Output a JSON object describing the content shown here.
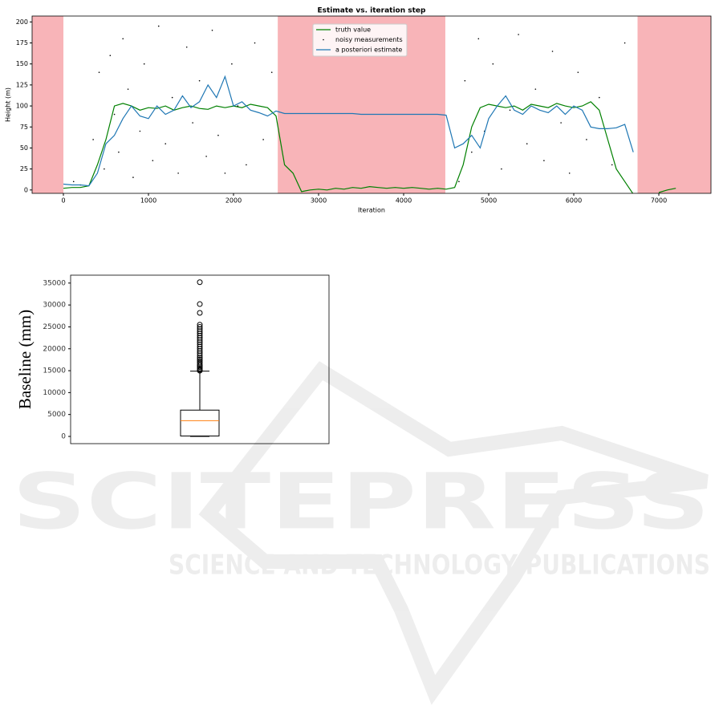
{
  "watermark": {
    "title": "SCITEPRESS",
    "subtitle": "SCIENCE AND TECHNOLOGY PUBLICATIONS"
  },
  "chart_data": [
    {
      "type": "line",
      "title": "Estimate vs. iteration step",
      "x_label": "Iteration",
      "y_label": "Height (m)",
      "x": [
        0,
        100,
        200,
        300,
        400,
        500,
        600,
        700,
        800,
        900,
        1000,
        1100,
        1200,
        1300,
        1400,
        1500,
        1600,
        1700,
        1800,
        1900,
        2000,
        2100,
        2200,
        2300,
        2400,
        2500,
        2600,
        2700,
        2800,
        2900,
        3000,
        3100,
        3200,
        3300,
        3400,
        3500,
        3600,
        3700,
        3800,
        3900,
        4000,
        4100,
        4200,
        4300,
        4400,
        4500,
        4600,
        4700,
        4800,
        4900,
        5000,
        5100,
        5200,
        5300,
        5400,
        5500,
        5600,
        5700,
        5800,
        5900,
        6000,
        6100,
        6200,
        6300,
        6400,
        6500,
        6600,
        6700,
        6800,
        6900,
        7000,
        7100,
        7200
      ],
      "series": [
        {
          "name": "truth value",
          "color": "#008000",
          "values": [
            2,
            3,
            3,
            5,
            30,
            60,
            100,
            103,
            100,
            95,
            98,
            97,
            100,
            95,
            98,
            100,
            97,
            96,
            100,
            98,
            100,
            98,
            102,
            100,
            98,
            88,
            30,
            20,
            -2,
            0,
            1,
            0,
            2,
            1,
            3,
            2,
            4,
            3,
            2,
            3,
            2,
            3,
            2,
            1,
            2,
            1,
            3,
            30,
            75,
            98,
            102,
            100,
            98,
            100,
            95,
            102,
            100,
            98,
            103,
            100,
            98,
            100,
            105,
            95,
            60,
            25,
            10,
            -5,
            null,
            null,
            -3,
            0,
            2
          ]
        },
        {
          "name": "noisy measurements",
          "type": "scatter",
          "color": "#000000",
          "x": [
            120,
            200,
            350,
            420,
            480,
            550,
            600,
            650,
            700,
            760,
            820,
            900,
            950,
            1050,
            1120,
            1200,
            1280,
            1350,
            1450,
            1520,
            1600,
            1680,
            1750,
            1820,
            1900,
            1980,
            2050,
            2150,
            2250,
            2350,
            2450,
            4650,
            4720,
            4800,
            4880,
            4950,
            5050,
            5150,
            5250,
            5350,
            5450,
            5550,
            5650,
            5750,
            5850,
            5950,
            6050,
            6150,
            6300,
            6450,
            6600
          ],
          "values": [
            10,
            6,
            60,
            140,
            25,
            160,
            90,
            45,
            180,
            120,
            15,
            70,
            150,
            35,
            195,
            55,
            110,
            20,
            170,
            80,
            130,
            40,
            190,
            65,
            20,
            150,
            100,
            30,
            175,
            60,
            140,
            10,
            130,
            45,
            180,
            70,
            150,
            25,
            95,
            185,
            55,
            120,
            35,
            165,
            80,
            20,
            140,
            60,
            110,
            30,
            175
          ]
        },
        {
          "name": "a posteriori estimate",
          "color": "#1f77b4",
          "values": [
            7,
            6,
            6,
            5,
            20,
            55,
            65,
            85,
            100,
            88,
            85,
            100,
            90,
            95,
            112,
            98,
            105,
            125,
            110,
            135,
            100,
            105,
            95,
            92,
            88,
            94,
            91,
            91,
            91,
            91,
            91,
            91,
            91,
            91,
            91,
            90,
            90,
            90,
            90,
            90,
            90,
            90,
            90,
            90,
            90,
            89,
            50,
            55,
            65,
            50,
            85,
            100,
            112,
            95,
            90,
            100,
            95,
            92,
            100,
            90,
            100,
            95,
            75,
            73,
            73,
            74,
            78,
            45,
            null,
            null,
            null,
            null,
            null
          ]
        }
      ],
      "shaded_regions": [
        [
          -368,
          0
        ],
        [
          2520,
          4490
        ],
        [
          6750,
          7613
        ]
      ],
      "shade_color": "#f8b4b8",
      "xlim": [
        -368,
        7613
      ],
      "ylim": [
        -4,
        207
      ],
      "xticks": [
        0,
        1000,
        2000,
        3000,
        4000,
        5000,
        6000,
        7000
      ],
      "yticks": [
        0,
        25,
        50,
        75,
        100,
        125,
        150,
        175,
        200
      ],
      "legend": "upper center"
    },
    {
      "type": "box",
      "y_label": "Baseline (mm)",
      "color": "#000000",
      "median_color": "#ff7f0e",
      "ylim": [
        -1650,
        36800
      ],
      "yticks": [
        0,
        5000,
        10000,
        15000,
        20000,
        25000,
        30000,
        35000
      ],
      "box": {
        "whislo": 0,
        "q1": 100,
        "med": 3600,
        "q3": 6000,
        "whishi": 14900,
        "fliers": [
          15000,
          15200,
          15500,
          15800,
          16100,
          16400,
          16800,
          17200,
          17600,
          18000,
          18500,
          19000,
          19500,
          20000,
          20500,
          21000,
          21500,
          22000,
          22500,
          23000,
          23500,
          24000,
          24500,
          25000,
          25500,
          28200,
          30200,
          35200
        ]
      }
    }
  ]
}
